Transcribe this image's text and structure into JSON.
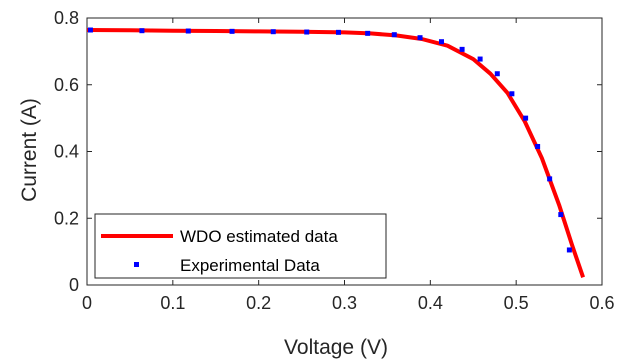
{
  "chart_data": {
    "type": "line",
    "xlabel": "Voltage (V)",
    "ylabel": "Current (A)",
    "xlim": [
      0,
      0.6
    ],
    "ylim": [
      0,
      0.8
    ],
    "xticks": [
      "0",
      "0.1",
      "0.2",
      "0.3",
      "0.4",
      "0.5",
      "0.6"
    ],
    "yticks": [
      "0",
      "0.2",
      "0.4",
      "0.6",
      "0.8"
    ],
    "grid": false,
    "legend_position": "bottom-left",
    "series": [
      {
        "name": "WDO estimated data",
        "style": "line",
        "color": "#ff0000",
        "x": [
          0.0,
          0.05,
          0.1,
          0.15,
          0.2,
          0.25,
          0.3,
          0.33,
          0.36,
          0.39,
          0.42,
          0.45,
          0.47,
          0.49,
          0.51,
          0.53,
          0.55,
          0.565,
          0.578
        ],
        "y": [
          0.764,
          0.763,
          0.762,
          0.761,
          0.76,
          0.759,
          0.757,
          0.754,
          0.748,
          0.737,
          0.717,
          0.677,
          0.633,
          0.575,
          0.49,
          0.38,
          0.24,
          0.12,
          0.023
        ]
      },
      {
        "name": "Experimental Data",
        "style": "markers",
        "color": "#0000ff",
        "x": [
          0.004,
          0.064,
          0.118,
          0.169,
          0.217,
          0.256,
          0.293,
          0.327,
          0.358,
          0.388,
          0.413,
          0.437,
          0.458,
          0.478,
          0.495,
          0.511,
          0.525,
          0.539,
          0.552,
          0.562
        ],
        "y": [
          0.764,
          0.762,
          0.761,
          0.76,
          0.759,
          0.758,
          0.757,
          0.754,
          0.75,
          0.741,
          0.729,
          0.706,
          0.677,
          0.633,
          0.573,
          0.5,
          0.415,
          0.318,
          0.211,
          0.105
        ]
      }
    ]
  }
}
